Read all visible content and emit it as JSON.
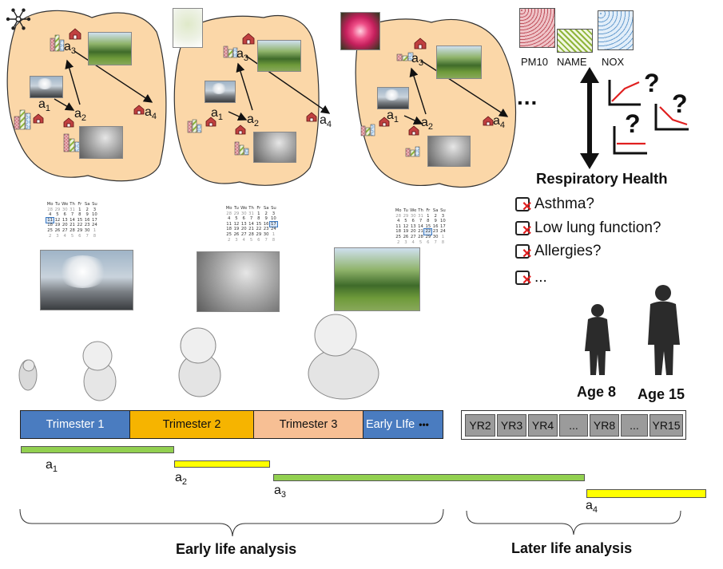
{
  "maps": [
    {
      "labels": {
        "a1": "a",
        "a1_sub": "1",
        "a2": "a",
        "a2_sub": "2",
        "a3": "a",
        "a3_sub": "3",
        "a4": "a",
        "a4_sub": "4"
      },
      "season_icon": "snowflake-icon"
    },
    {
      "labels": {
        "a1": "a",
        "a1_sub": "1",
        "a2": "a",
        "a2_sub": "2",
        "a3": "a",
        "a3_sub": "3",
        "a4": "a",
        "a4_sub": "4"
      },
      "season_icon": "sprout-photo"
    },
    {
      "labels": {
        "a1": "a",
        "a1_sub": "1",
        "a2": "a",
        "a2_sub": "2",
        "a3": "a",
        "a3_sub": "3",
        "a4": "a",
        "a4_sub": "4"
      },
      "season_icon": "flower-photo"
    }
  ],
  "ellipsis": "...",
  "pollutants": {
    "pm10": "PM10",
    "name": "NAME",
    "nox": "NOX",
    "colors": {
      "pm10": "#d98b93",
      "name": "#9fbf4a",
      "nox": "#9ec3e6"
    }
  },
  "health": {
    "title": "Respiratory Health",
    "items": [
      "Asthma?",
      "Low lung function?",
      "Allergies?",
      "..."
    ],
    "question_mark": "?"
  },
  "calendar": {
    "headers": [
      "Mo",
      "Tu",
      "We",
      "Th",
      "Fr",
      "Sa",
      "Su"
    ],
    "rows": [
      [
        "28",
        "29",
        "30",
        "31",
        "1",
        "2",
        "3"
      ],
      [
        "4",
        "5",
        "6",
        "7",
        "8",
        "9",
        "10"
      ],
      [
        "11",
        "12",
        "13",
        "14",
        "15",
        "16",
        "17"
      ],
      [
        "18",
        "19",
        "20",
        "21",
        "22",
        "23",
        "24"
      ],
      [
        "25",
        "26",
        "27",
        "28",
        "29",
        "30",
        "1"
      ],
      [
        "2",
        "3",
        "4",
        "5",
        "6",
        "7",
        "8"
      ]
    ]
  },
  "ages": {
    "age8": "Age 8",
    "age15": "Age 15"
  },
  "timeline": {
    "trimester1": "Trimester 1",
    "trimester2": "Trimester 2",
    "trimester3": "Trimester 3",
    "early_life": "Early LIfe",
    "early_life_dots": "•••",
    "colors": {
      "trimester1": "#4a7cc0",
      "trimester2": "#f6b400",
      "trimester3": "#f7bf94",
      "early_life": "#4a7cc0"
    },
    "years": [
      "YR2",
      "YR3",
      "YR4",
      "...",
      "YR8",
      "...",
      "YR15"
    ]
  },
  "windows": [
    {
      "label": "a",
      "sub": "1",
      "color": "#92d050"
    },
    {
      "label": "a",
      "sub": "2",
      "color": "#ffff00"
    },
    {
      "label": "a",
      "sub": "3",
      "color": "#92d050"
    },
    {
      "label": "a",
      "sub": "4",
      "color": "#ffff00"
    }
  ],
  "analysis": {
    "early": "Early life analysis",
    "later": "Later life analysis"
  }
}
